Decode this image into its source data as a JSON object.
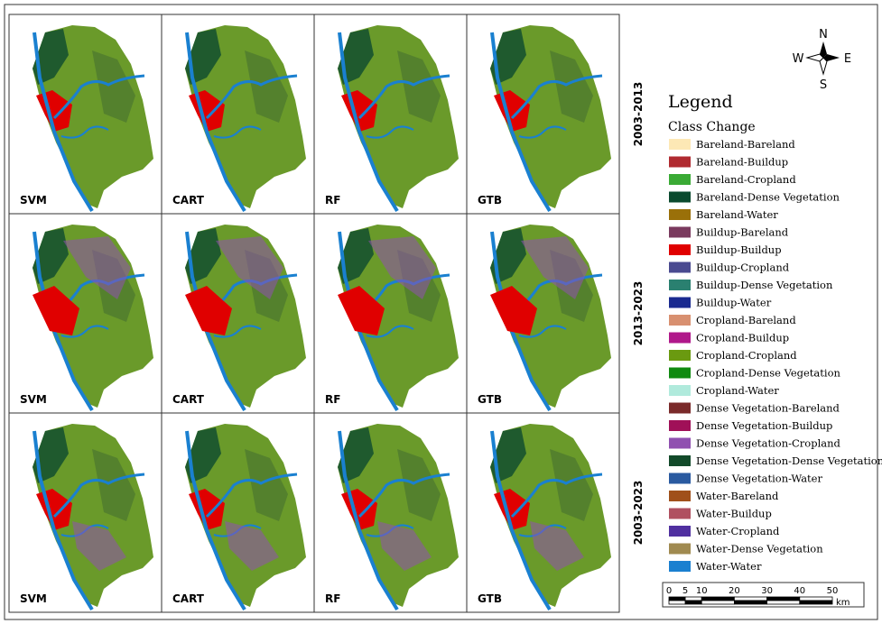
{
  "row_labels": [
    "2003-2013",
    "2013-2023",
    "2003-2023"
  ],
  "models": [
    "SVM",
    "CART",
    "RF",
    "GTB"
  ],
  "compass": {
    "n": "N",
    "s": "S",
    "e": "E",
    "w": "W"
  },
  "legend": {
    "title": "Legend",
    "subtitle": "Class Change",
    "items": [
      {
        "label": "Bareland-Bareland",
        "color": "#fde8b5"
      },
      {
        "label": "Bareland-Buildup",
        "color": "#b02a30"
      },
      {
        "label": "Bareland-Cropland",
        "color": "#3aaa35"
      },
      {
        "label": "Bareland-Dense Vegetation",
        "color": "#0a4a2e"
      },
      {
        "label": "Bareland-Water",
        "color": "#9a7009"
      },
      {
        "label": "Buildup-Bareland",
        "color": "#7a3a5e"
      },
      {
        "label": "Buildup-Buildup",
        "color": "#e00000"
      },
      {
        "label": "Buildup-Cropland",
        "color": "#4a4a90"
      },
      {
        "label": "Buildup-Dense Vegetation",
        "color": "#2a8070"
      },
      {
        "label": "Buildup-Water",
        "color": "#1a2a90"
      },
      {
        "label": "Cropland-Bareland",
        "color": "#d89070"
      },
      {
        "label": "Cropland-Buildup",
        "color": "#b0188a"
      },
      {
        "label": "Cropland-Cropland",
        "color": "#6a9a10"
      },
      {
        "label": "Cropland-Dense Vegetation",
        "color": "#108a10"
      },
      {
        "label": "Cropland-Water",
        "color": "#b0eadc"
      },
      {
        "label": "Dense Vegetation-Bareland",
        "color": "#7a2a2a"
      },
      {
        "label": "Dense Vegetation-Buildup",
        "color": "#a01058"
      },
      {
        "label": "Dense Vegetation-Cropland",
        "color": "#9050b0"
      },
      {
        "label": "Dense Vegetation-Dense Vegetation",
        "color": "#124a2a"
      },
      {
        "label": "Dense Vegetation-Water",
        "color": "#2a5aa0"
      },
      {
        "label": "Water-Bareland",
        "color": "#a0501a"
      },
      {
        "label": "Water-Buildup",
        "color": "#b05060"
      },
      {
        "label": "Water-Cropland",
        "color": "#5030a0"
      },
      {
        "label": "Water-Dense Vegetation",
        "color": "#a08a50"
      },
      {
        "label": "Water-Water",
        "color": "#1a80d0"
      }
    ]
  },
  "scale_bar": {
    "ticks": [
      0,
      5,
      10,
      20,
      30,
      40,
      50
    ],
    "unit": "km"
  }
}
